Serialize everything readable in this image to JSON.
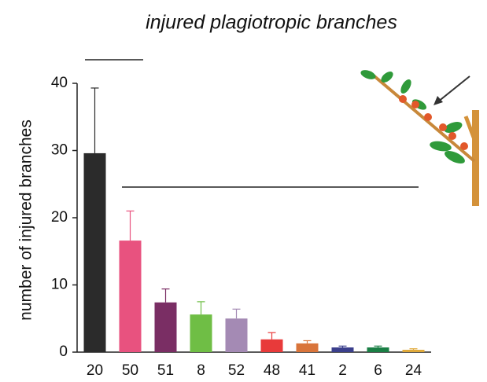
{
  "chart_data": {
    "type": "bar",
    "title": "injured plagiotropic branches",
    "y_label": "number of injured branches",
    "categories": [
      "20",
      "50",
      "51",
      "8",
      "52",
      "48",
      "41",
      "2",
      "6",
      "24"
    ],
    "values": [
      29.6,
      16.6,
      7.4,
      5.6,
      5.0,
      1.9,
      1.3,
      0.7,
      0.7,
      0.35
    ],
    "errors": [
      9.7,
      4.4,
      2.0,
      1.9,
      1.4,
      1.0,
      0.4,
      0.2,
      0.2,
      0.15
    ],
    "colors": [
      "#2b2b2b",
      "#e8527f",
      "#7a2e64",
      "#6fbe45",
      "#a48ab4",
      "#e83a3a",
      "#d9743a",
      "#3b3f8c",
      "#1a7f45",
      "#e0a93a"
    ],
    "ylim": [
      0,
      40
    ],
    "yticks": [
      0,
      10,
      20,
      30,
      40
    ]
  }
}
